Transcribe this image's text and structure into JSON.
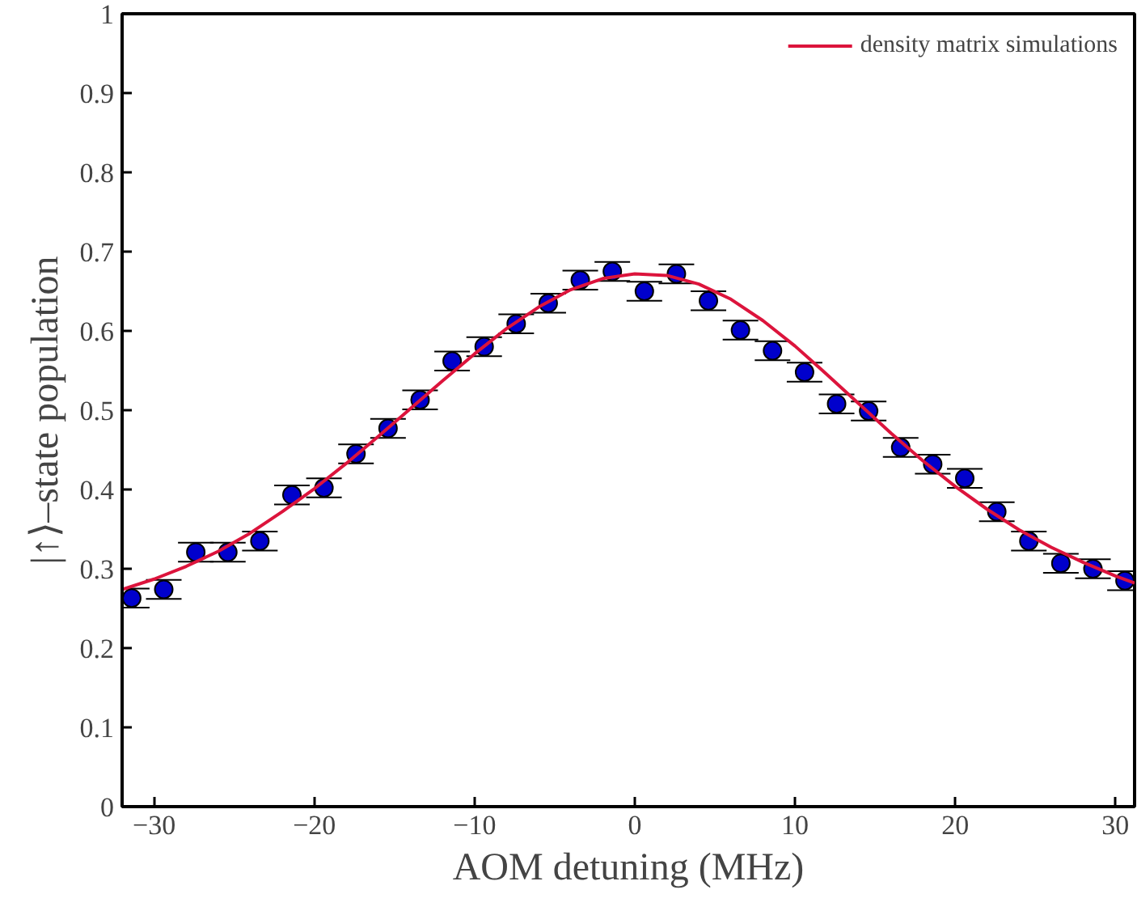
{
  "chart_data": {
    "type": "scatter",
    "xlabel": "AOM detuning (MHz)",
    "ylabel": "|↑⟩–state population",
    "xlim": [
      -32,
      31.2
    ],
    "ylim": [
      0,
      1
    ],
    "xticks": [
      {
        "value": -30,
        "label": "−30"
      },
      {
        "value": -20,
        "label": "−20"
      },
      {
        "value": -10,
        "label": "−10"
      },
      0,
      10,
      20,
      30
    ],
    "yticks": [
      0,
      0.1,
      0.2,
      0.3,
      0.4,
      0.5,
      0.6,
      0.7,
      0.8,
      0.9,
      1
    ],
    "grid": false,
    "legend": "top right",
    "series": [
      {
        "color": "#0000cc",
        "marker": "circle",
        "x": [
          -31.4,
          -29.4,
          -27.4,
          -25.4,
          -23.4,
          -21.4,
          -19.4,
          -17.4,
          -15.4,
          -13.4,
          -11.4,
          -9.4,
          -7.4,
          -5.4,
          -3.4,
          -1.4,
          0.6,
          2.6,
          4.6,
          6.6,
          8.6,
          10.6,
          12.6,
          14.6,
          16.6,
          18.6,
          20.6,
          22.6,
          24.6,
          26.6,
          28.6,
          30.6
        ],
        "values": [
          0.263,
          0.274,
          0.321,
          0.321,
          0.335,
          0.393,
          0.402,
          0.445,
          0.477,
          0.513,
          0.562,
          0.58,
          0.609,
          0.635,
          0.664,
          0.675,
          0.65,
          0.672,
          0.638,
          0.601,
          0.575,
          0.548,
          0.508,
          0.499,
          0.453,
          0.432,
          0.414,
          0.372,
          0.335,
          0.307,
          0.3,
          0.285
        ],
        "errors": [
          0.012,
          0.012,
          0.012,
          0.012,
          0.012,
          0.012,
          0.012,
          0.012,
          0.012,
          0.012,
          0.012,
          0.012,
          0.012,
          0.012,
          0.012,
          0.012,
          0.012,
          0.012,
          0.012,
          0.012,
          0.012,
          0.012,
          0.012,
          0.012,
          0.012,
          0.012,
          0.012,
          0.012,
          0.012,
          0.012,
          0.012,
          0.012
        ]
      },
      {
        "type": "line",
        "name": "density matrix simulations",
        "color": "#dc143c",
        "line_style": "solid",
        "x": [
          -32,
          -30,
          -28,
          -26,
          -24,
          -22,
          -20,
          -18,
          -16,
          -14,
          -12,
          -10,
          -8,
          -6,
          -4,
          -2,
          0,
          2,
          4,
          6,
          8,
          10,
          12,
          14,
          16,
          18,
          20,
          22,
          24,
          26,
          28,
          30,
          31.2
        ],
        "values": [
          0.274,
          0.287,
          0.303,
          0.322,
          0.345,
          0.372,
          0.401,
          0.433,
          0.467,
          0.502,
          0.537,
          0.571,
          0.603,
          0.63,
          0.652,
          0.666,
          0.672,
          0.67,
          0.659,
          0.64,
          0.613,
          0.581,
          0.545,
          0.508,
          0.471,
          0.436,
          0.404,
          0.375,
          0.349,
          0.327,
          0.308,
          0.291,
          0.282
        ]
      }
    ]
  }
}
